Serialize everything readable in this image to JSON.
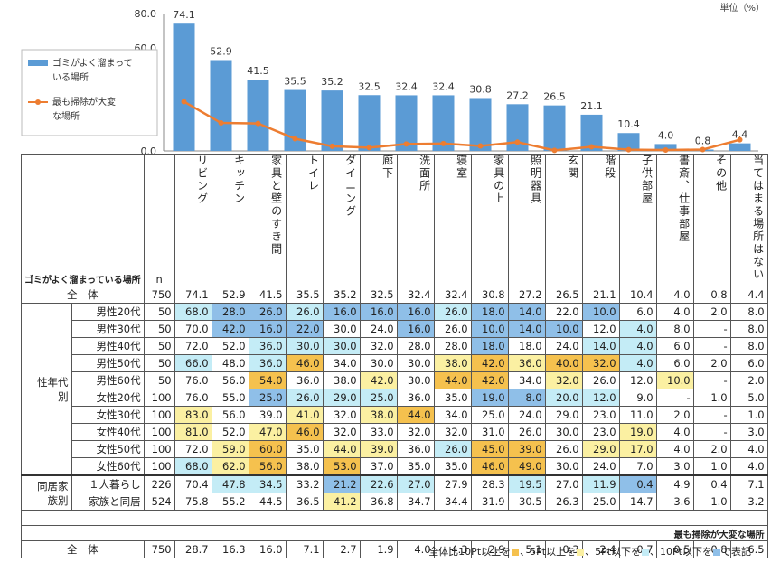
{
  "chart_data": {
    "type": "bar",
    "categories": [
      "リビング",
      "キッチン",
      "家具と壁のすき間",
      "トイレ",
      "ダイニング",
      "廊下",
      "洗面所",
      "寝室",
      "家具の上",
      "照明器具",
      "玄関",
      "階段",
      "子供部屋",
      "書斎、仕事部屋",
      "その他",
      "当てはまる場所はない"
    ],
    "series": [
      {
        "name": "ゴミがよく溜まっている場所",
        "type": "bar",
        "values": [
          74.1,
          52.9,
          41.5,
          35.5,
          35.2,
          32.5,
          32.4,
          32.4,
          30.8,
          27.2,
          26.5,
          21.1,
          10.4,
          4.0,
          0.8,
          4.4
        ],
        "color": "#5b9bd5"
      },
      {
        "name": "最も掃除が大変な場所",
        "type": "line",
        "values": [
          28.7,
          16.3,
          16.0,
          7.1,
          2.7,
          1.9,
          4.0,
          4.3,
          2.9,
          5.1,
          0.3,
          2.4,
          0.7,
          0.5,
          0.8,
          6.5
        ],
        "color": "#ed7d31"
      }
    ],
    "ylim": [
      0,
      80
    ],
    "yticks": [
      "0.0",
      "20.0",
      "40.0",
      "60.0",
      "80.0"
    ],
    "bar_labels": [
      "74.1",
      "52.9",
      "41.5",
      "35.5",
      "35.2",
      "32.5",
      "32.4",
      "32.4",
      "30.8",
      "27.2",
      "26.5",
      "21.1",
      "10.4",
      "4.0",
      "0.8",
      "4.4"
    ],
    "unit_label": "単位（%）",
    "legend": [
      {
        "label_line1": "ゴミがよく溜まって",
        "label_line2": "いる場所"
      },
      {
        "label_line1": "最も掃除が大変",
        "label_line2": "な場所"
      }
    ]
  },
  "table": {
    "section1_title": "ゴミがよく溜まっている場所",
    "n_header": "n",
    "total": {
      "label": "全　体",
      "n": "750",
      "values": [
        "74.1",
        "52.9",
        "41.5",
        "35.5",
        "35.2",
        "32.5",
        "32.4",
        "32.4",
        "30.8",
        "27.2",
        "26.5",
        "21.1",
        "10.4",
        "4.0",
        "0.8",
        "4.4"
      ]
    },
    "group1": {
      "label_a": "性年代",
      "label_b": "別"
    },
    "group2": {
      "label_a": "同居家",
      "label_b": "族別"
    },
    "rows": [
      {
        "label": "男性20代",
        "n": "50",
        "values": [
          "68.0",
          "28.0",
          "26.0",
          "26.0",
          "16.0",
          "16.0",
          "16.0",
          "26.0",
          "18.0",
          "14.0",
          "22.0",
          "10.0",
          "6.0",
          "4.0",
          "2.0",
          "8.0"
        ],
        "colors": [
          "lblue",
          "dblue",
          "dblue",
          "lblue",
          "dblue",
          "dblue",
          "dblue",
          "lblue",
          "dblue",
          "dblue",
          "",
          "dblue",
          "",
          "",
          "",
          ""
        ]
      },
      {
        "label": "男性30代",
        "n": "50",
        "values": [
          "70.0",
          "42.0",
          "16.0",
          "22.0",
          "30.0",
          "24.0",
          "16.0",
          "26.0",
          "10.0",
          "14.0",
          "10.0",
          "12.0",
          "4.0",
          "8.0",
          "-",
          "8.0"
        ],
        "colors": [
          "",
          "dblue",
          "dblue",
          "dblue",
          "",
          "",
          "dblue",
          "",
          "dblue",
          "dblue",
          "dblue",
          "",
          "lblue",
          "",
          "",
          ""
        ]
      },
      {
        "label": "男性40代",
        "n": "50",
        "values": [
          "72.0",
          "52.0",
          "36.0",
          "30.0",
          "30.0",
          "32.0",
          "28.0",
          "28.0",
          "18.0",
          "18.0",
          "24.0",
          "14.0",
          "4.0",
          "6.0",
          "-",
          "8.0"
        ],
        "colors": [
          "",
          "",
          "lblue",
          "lblue",
          "lblue",
          "",
          "",
          "",
          "dblue",
          "",
          "",
          "lblue",
          "lblue",
          "",
          "",
          ""
        ]
      },
      {
        "label": "男性50代",
        "n": "50",
        "values": [
          "66.0",
          "48.0",
          "36.0",
          "46.0",
          "34.0",
          "30.0",
          "30.0",
          "38.0",
          "42.0",
          "36.0",
          "40.0",
          "32.0",
          "4.0",
          "6.0",
          "2.0",
          "6.0"
        ],
        "colors": [
          "lblue",
          "",
          "lblue",
          "dark",
          "",
          "",
          "",
          "light",
          "dark",
          "light",
          "dark",
          "dark",
          "lblue",
          "",
          "",
          ""
        ]
      },
      {
        "label": "男性60代",
        "n": "50",
        "values": [
          "76.0",
          "56.0",
          "54.0",
          "36.0",
          "38.0",
          "42.0",
          "30.0",
          "44.0",
          "42.0",
          "34.0",
          "32.0",
          "26.0",
          "12.0",
          "10.0",
          "-",
          "2.0"
        ],
        "colors": [
          "",
          "",
          "dark",
          "",
          "",
          "light",
          "",
          "dark",
          "dark",
          "",
          "light",
          "",
          "",
          "light",
          "",
          ""
        ]
      },
      {
        "label": "女性20代",
        "n": "100",
        "values": [
          "76.0",
          "55.0",
          "25.0",
          "26.0",
          "29.0",
          "25.0",
          "36.0",
          "35.0",
          "19.0",
          "8.0",
          "20.0",
          "12.0",
          "9.0",
          "-",
          "1.0",
          "5.0"
        ],
        "colors": [
          "",
          "",
          "dblue",
          "lblue",
          "lblue",
          "lblue",
          "",
          "",
          "dblue",
          "dblue",
          "lblue",
          "lblue",
          "",
          "",
          "",
          ""
        ]
      },
      {
        "label": "女性30代",
        "n": "100",
        "values": [
          "83.0",
          "56.0",
          "39.0",
          "41.0",
          "32.0",
          "38.0",
          "44.0",
          "34.0",
          "25.0",
          "24.0",
          "29.0",
          "23.0",
          "11.0",
          "2.0",
          "-",
          "1.0"
        ],
        "colors": [
          "light",
          "",
          "",
          "light",
          "",
          "light",
          "dark",
          "",
          "",
          "",
          "",
          "",
          "",
          "",
          "",
          ""
        ]
      },
      {
        "label": "女性40代",
        "n": "100",
        "values": [
          "81.0",
          "52.0",
          "47.0",
          "46.0",
          "32.0",
          "33.0",
          "32.0",
          "32.0",
          "31.0",
          "26.0",
          "30.0",
          "23.0",
          "19.0",
          "4.0",
          "-",
          "3.0"
        ],
        "colors": [
          "light",
          "",
          "light",
          "dark",
          "",
          "",
          "",
          "",
          "",
          "",
          "",
          "",
          "light",
          "",
          "",
          ""
        ]
      },
      {
        "label": "女性50代",
        "n": "100",
        "values": [
          "72.0",
          "59.0",
          "60.0",
          "35.0",
          "44.0",
          "39.0",
          "36.0",
          "26.0",
          "45.0",
          "39.0",
          "26.0",
          "29.0",
          "17.0",
          "4.0",
          "2.0",
          "4.0"
        ],
        "colors": [
          "",
          "light",
          "dark",
          "",
          "light",
          "light",
          "",
          "lblue",
          "dark",
          "dark",
          "",
          "light",
          "light",
          "",
          "",
          ""
        ]
      },
      {
        "label": "女性60代",
        "n": "100",
        "values": [
          "68.0",
          "62.0",
          "56.0",
          "38.0",
          "53.0",
          "37.0",
          "35.0",
          "35.0",
          "46.0",
          "49.0",
          "30.0",
          "24.0",
          "7.0",
          "3.0",
          "1.0",
          "4.0"
        ],
        "colors": [
          "lblue",
          "light",
          "dark",
          "",
          "dark",
          "",
          "",
          "",
          "dark",
          "dark",
          "",
          "",
          "",
          "",
          "",
          ""
        ]
      },
      {
        "label": "１人暮らし",
        "n": "226",
        "values": [
          "70.4",
          "47.8",
          "34.5",
          "33.2",
          "21.2",
          "22.6",
          "27.0",
          "27.9",
          "28.3",
          "19.5",
          "27.0",
          "11.9",
          "0.4",
          "4.9",
          "0.4",
          "7.1"
        ],
        "colors": [
          "",
          "lblue",
          "lblue",
          "",
          "dblue",
          "lblue",
          "lblue",
          "",
          "",
          "lblue",
          "",
          "lblue",
          "dblue",
          "",
          "",
          ""
        ]
      },
      {
        "label": "家族と同居",
        "n": "524",
        "values": [
          "75.8",
          "55.2",
          "44.5",
          "36.5",
          "41.2",
          "36.8",
          "34.7",
          "34.4",
          "31.9",
          "30.5",
          "26.3",
          "25.0",
          "14.7",
          "3.6",
          "1.0",
          "3.2"
        ],
        "colors": [
          "",
          "",
          "",
          "",
          "light",
          "",
          "",
          "",
          "",
          "",
          "",
          "",
          "",
          "",
          "",
          ""
        ]
      }
    ],
    "section2_title": "最も掃除が大変な場所",
    "total2": {
      "label": "全　体",
      "n": "750",
      "values": [
        "28.7",
        "16.3",
        "16.0",
        "7.1",
        "2.7",
        "1.9",
        "4.0",
        "4.3",
        "2.9",
        "5.1",
        "0.3",
        "2.4",
        "0.7",
        "0.5",
        "0.8",
        "6.5"
      ]
    }
  },
  "footnote": {
    "prefix": "全体比10Pt以上を",
    "p2": "、5Pt以上を",
    "p3": "、5Pt以下を",
    "p4": "、10Pt以下を",
    "suffix": "で表記",
    "colors": {
      "dark": "#f5c14e",
      "light": "#fbf0a2",
      "lblue": "#c4ecf6",
      "dblue": "#8fbfe8"
    }
  }
}
